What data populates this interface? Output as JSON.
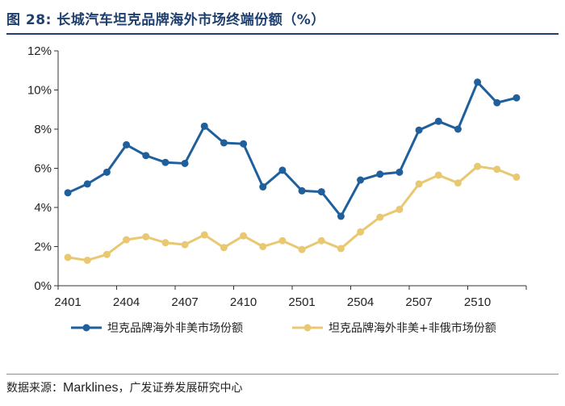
{
  "figure": {
    "title": "图 28: 长城汽车坦克品牌海外市场终端份额（%）",
    "source_label": "数据来源：",
    "source_brand": "Marklines",
    "source_rest": "，广发证券发展研究中心"
  },
  "colors": {
    "series1": "#1f5f9c",
    "series2": "#e8c871",
    "axis": "#333333",
    "title": "#1f3f6e"
  },
  "chart_data": {
    "type": "line",
    "title": "长城汽车坦克品牌海外市场终端份额（%）",
    "xlabel": "",
    "ylabel": "",
    "ylim": [
      0,
      12
    ],
    "yticks": [
      "0%",
      "2%",
      "4%",
      "6%",
      "8%",
      "10%",
      "12%"
    ],
    "ytick_values": [
      0,
      2,
      4,
      6,
      8,
      10,
      12
    ],
    "x": [
      "2401",
      "2402",
      "2403",
      "2404",
      "2405",
      "2406",
      "2407",
      "2408",
      "2409",
      "2410",
      "2411",
      "2412",
      "2501",
      "2502",
      "2503",
      "2504",
      "2505",
      "2506",
      "2507",
      "2508",
      "2509",
      "2510",
      "2511",
      "2512"
    ],
    "xtick_labels": [
      "2401",
      "2404",
      "2407",
      "2410",
      "2501",
      "2504",
      "2507",
      "2510"
    ],
    "grid": false,
    "legend_position": "bottom",
    "series": [
      {
        "name": "坦克品牌海外非美市场份额",
        "values": [
          4.75,
          5.2,
          5.8,
          7.2,
          6.65,
          6.3,
          6.25,
          8.15,
          7.3,
          7.25,
          5.05,
          5.9,
          4.85,
          4.8,
          3.55,
          5.4,
          5.7,
          5.8,
          7.95,
          8.4,
          8.0,
          10.4,
          9.35,
          9.6
        ]
      },
      {
        "name": "坦克品牌海外非美+非俄市场份额",
        "values": [
          1.45,
          1.3,
          1.6,
          2.35,
          2.5,
          2.2,
          2.1,
          2.6,
          1.95,
          2.55,
          2.0,
          2.3,
          1.85,
          2.3,
          1.9,
          2.75,
          3.5,
          3.9,
          5.2,
          5.65,
          5.25,
          6.1,
          5.95,
          5.55
        ]
      }
    ]
  }
}
